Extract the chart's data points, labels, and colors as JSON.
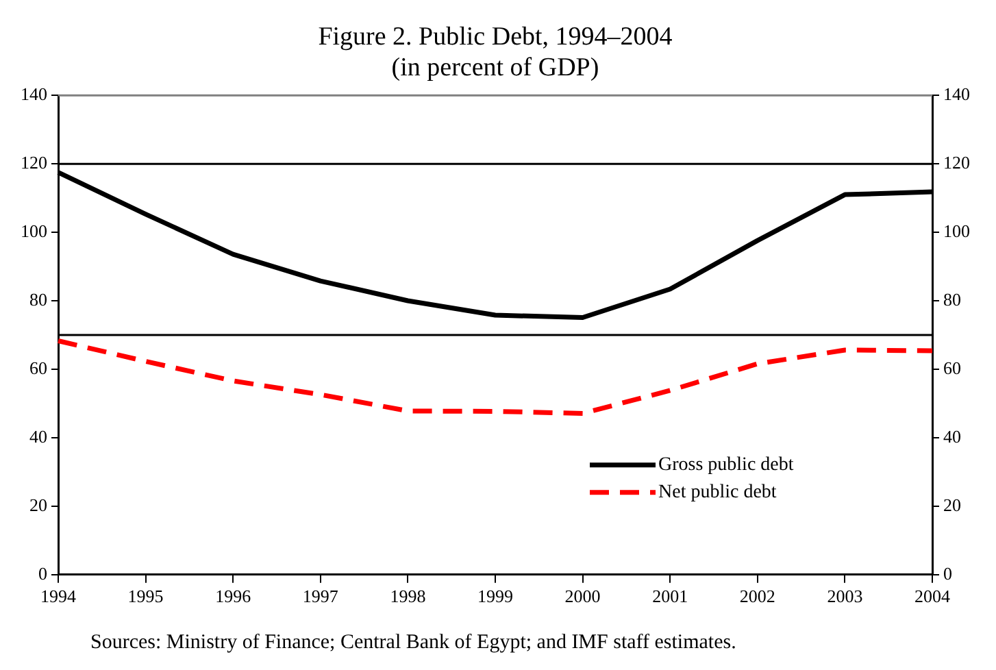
{
  "chart_data": {
    "type": "line",
    "title": "Figure 2. Public Debt, 1994–2004",
    "subtitle": "(in percent of GDP)",
    "categories": [
      "1994",
      "1995",
      "1996",
      "1997",
      "1998",
      "1999",
      "2000",
      "2001",
      "2002",
      "2003",
      "2004"
    ],
    "series": [
      {
        "name": "Gross public debt",
        "color": "#000000",
        "line_style": "solid",
        "values": [
          117.5,
          105.3,
          93.6,
          85.8,
          80,
          75.8,
          75.1,
          83.4,
          97.6,
          111,
          111.8
        ]
      },
      {
        "name": "Net public debt",
        "color": "#ff0000",
        "line_style": "dashed",
        "values": [
          68.3,
          62.3,
          56.6,
          52.6,
          47.8,
          47.7,
          47.1,
          53.8,
          61.6,
          65.6,
          65.4
        ]
      }
    ],
    "ylim": [
      0,
      140
    ],
    "yticks": [
      0,
      20,
      40,
      60,
      80,
      100,
      120,
      140
    ],
    "y2lim": [
      0,
      140
    ],
    "y2ticks": [
      0,
      20,
      40,
      60,
      80,
      100,
      120,
      140
    ],
    "ref_lines": [
      {
        "axis": "y",
        "value": 120,
        "color": "#000000"
      },
      {
        "axis": "y",
        "value": 70,
        "color": "#000000"
      }
    ],
    "grid": false,
    "legend": "bottom right",
    "marker": "none",
    "annotations": [
      "Sources: Ministry of Finance; Central Bank of Egypt; and IMF staff estimates."
    ]
  }
}
